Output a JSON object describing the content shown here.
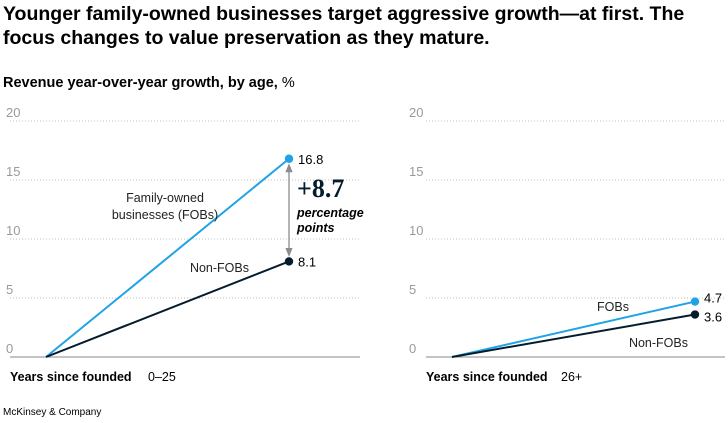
{
  "title": "Younger family-owned businesses target aggressive growth—at first. The focus changes to value preservation as they mature.",
  "subtitle": "Revenue year-over-year growth, by age,",
  "subtitle_unit": "%",
  "source": "McKinsey & Company",
  "colors": {
    "fobs": "#1fa3e6",
    "non_fobs": "#051c2c",
    "grid": "#bfbfbf",
    "arrow": "#8c8c8c"
  },
  "chart_data": [
    {
      "type": "line",
      "xlabel": "Years since founded",
      "x_range_label": "0–25",
      "ylim": [
        0,
        20
      ],
      "yticks": [
        0,
        5,
        10,
        15,
        20
      ],
      "series": [
        {
          "key": "fobs",
          "name": "Family-owned businesses (FOBs)",
          "label_lines": [
            "Family-owned",
            "businesses (FOBs)"
          ],
          "values": [
            0,
            16.8
          ],
          "end_label": "16.8"
        },
        {
          "key": "non_fobs",
          "name": "Non-FOBs",
          "label_lines": [
            "Non-FOBs"
          ],
          "values": [
            0,
            8.1
          ],
          "end_label": "8.1"
        }
      ],
      "annotation": {
        "value": "+8.7",
        "lines": [
          "percentage",
          "points"
        ]
      }
    },
    {
      "type": "line",
      "xlabel": "Years since founded",
      "x_range_label": "26+",
      "ylim": [
        0,
        20
      ],
      "yticks": [
        0,
        5,
        10,
        15,
        20
      ],
      "series": [
        {
          "key": "fobs",
          "name": "FOBs",
          "label_lines": [
            "FOBs"
          ],
          "values": [
            0,
            4.7
          ],
          "end_label": "4.7"
        },
        {
          "key": "non_fobs",
          "name": "Non-FOBs",
          "label_lines": [
            "Non-FOBs"
          ],
          "values": [
            0,
            3.6
          ],
          "end_label": "3.6"
        }
      ]
    }
  ]
}
